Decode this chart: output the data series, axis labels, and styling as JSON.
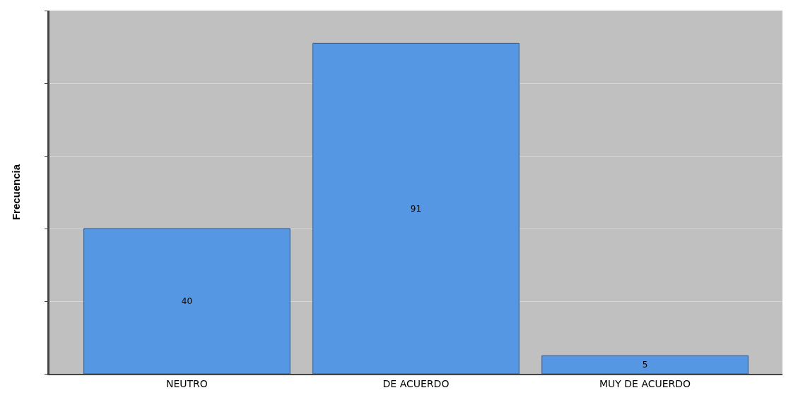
{
  "chart_data": {
    "type": "bar",
    "ylabel": "Frecuencia",
    "categories": [
      "NEUTRO",
      "DE ACUERDO",
      "MUY DE ACUERDO"
    ],
    "values": [
      40,
      91,
      5
    ],
    "color": "#5597e3",
    "data_labels": true,
    "ylim": [
      0,
      100
    ],
    "yticks": [
      {
        "value": 0,
        "label": null
      },
      {
        "value": 20,
        "label": null
      },
      {
        "value": 40,
        "label": null
      },
      {
        "value": 60,
        "label": null
      },
      {
        "value": 80,
        "label": null
      },
      {
        "value": 100,
        "label": null
      }
    ],
    "grid": "y"
  }
}
